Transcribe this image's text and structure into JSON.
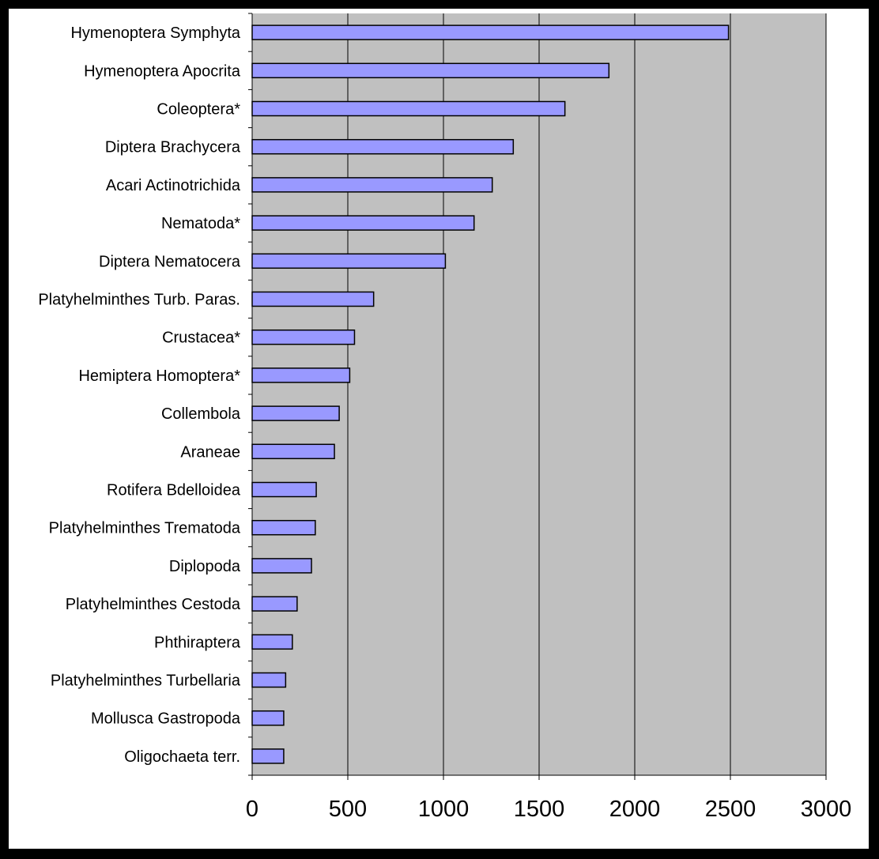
{
  "chart_data": {
    "type": "bar",
    "orientation": "horizontal",
    "title": "",
    "xlabel": "",
    "ylabel": "",
    "categories": [
      "Hymenoptera Symphyta",
      "Hymenoptera Apocrita",
      "Coleoptera*",
      "Diptera Brachycera",
      "Acari Actinotrichida",
      "Nematoda*",
      "Diptera Nematocera",
      "Platyhelminthes Turb. Paras.",
      "Crustacea*",
      "Hemiptera Homoptera*",
      "Collembola",
      "Araneae",
      "Rotifera Bdelloidea",
      "Platyhelminthes Trematoda",
      "Diplopoda",
      "Platyhelminthes Cestoda",
      "Phthiraptera",
      "Platyhelminthes Turbellaria",
      "Mollusca Gastropoda",
      "Oligochaeta terr."
    ],
    "values": [
      2490,
      1865,
      1635,
      1365,
      1255,
      1160,
      1010,
      635,
      535,
      510,
      455,
      430,
      335,
      330,
      310,
      235,
      210,
      175,
      165,
      165
    ],
    "xlim": [
      0,
      3000
    ],
    "xticks": [
      "0",
      "500",
      "1000",
      "1500",
      "2000",
      "2500",
      "3000"
    ],
    "grid": "vertical",
    "legend": "none",
    "colors": {
      "bar_fill": "#9999ff",
      "bar_stroke": "#000000",
      "plot_background": "#c0c0c0",
      "gridline": "#000000"
    }
  }
}
